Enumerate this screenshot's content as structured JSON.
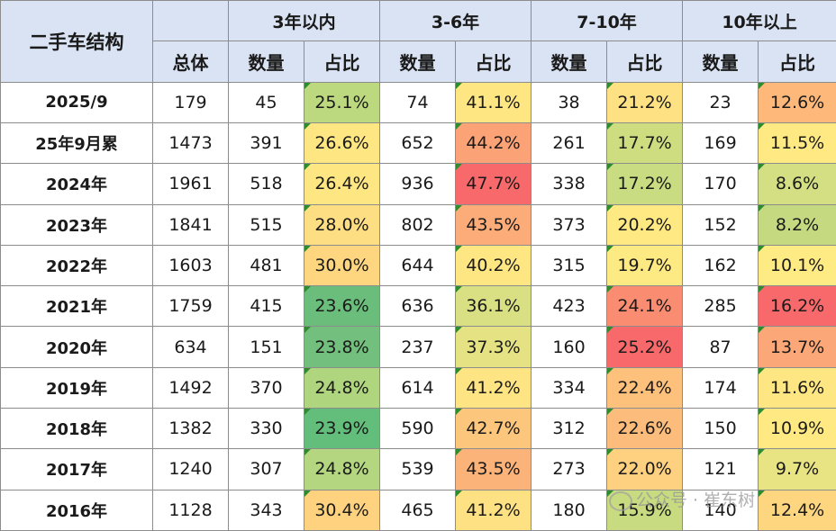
{
  "header": {
    "title": "二手车结构",
    "total_label": "总体",
    "groups": [
      "3年以内",
      "3-6年",
      "7-10年",
      "10年以上"
    ],
    "count_label": "数量",
    "share_label": "占比"
  },
  "rows": [
    {
      "label": "2025/9",
      "total": "179",
      "cells": [
        [
          "45",
          "25.1%"
        ],
        [
          "74",
          "41.1%"
        ],
        [
          "38",
          "21.2%"
        ],
        [
          "23",
          "12.6%"
        ]
      ]
    },
    {
      "label": "25年9月累",
      "total": "1473",
      "cells": [
        [
          "391",
          "26.6%"
        ],
        [
          "652",
          "44.2%"
        ],
        [
          "261",
          "17.7%"
        ],
        [
          "169",
          "11.5%"
        ]
      ]
    },
    {
      "label": "2024年",
      "total": "1961",
      "cells": [
        [
          "518",
          "26.4%"
        ],
        [
          "936",
          "47.7%"
        ],
        [
          "338",
          "17.2%"
        ],
        [
          "170",
          "8.6%"
        ]
      ]
    },
    {
      "label": "2023年",
      "total": "1841",
      "cells": [
        [
          "515",
          "28.0%"
        ],
        [
          "802",
          "43.5%"
        ],
        [
          "373",
          "20.2%"
        ],
        [
          "152",
          "8.2%"
        ]
      ]
    },
    {
      "label": "2022年",
      "total": "1603",
      "cells": [
        [
          "481",
          "30.0%"
        ],
        [
          "644",
          "40.2%"
        ],
        [
          "315",
          "19.7%"
        ],
        [
          "162",
          "10.1%"
        ]
      ]
    },
    {
      "label": "2021年",
      "total": "1759",
      "cells": [
        [
          "415",
          "23.6%"
        ],
        [
          "636",
          "36.1%"
        ],
        [
          "423",
          "24.1%"
        ],
        [
          "285",
          "16.2%"
        ]
      ]
    },
    {
      "label": "2020年",
      "total": "634",
      "cells": [
        [
          "151",
          "23.8%"
        ],
        [
          "237",
          "37.3%"
        ],
        [
          "160",
          "25.2%"
        ],
        [
          "87",
          "13.7%"
        ]
      ]
    },
    {
      "label": "2019年",
      "total": "1492",
      "cells": [
        [
          "370",
          "24.8%"
        ],
        [
          "614",
          "41.2%"
        ],
        [
          "334",
          "22.4%"
        ],
        [
          "174",
          "11.6%"
        ]
      ]
    },
    {
      "label": "2018年",
      "total": "1382",
      "cells": [
        [
          "330",
          "23.9%"
        ],
        [
          "590",
          "42.7%"
        ],
        [
          "312",
          "22.6%"
        ],
        [
          "150",
          "10.9%"
        ]
      ]
    },
    {
      "label": "2017年",
      "total": "1240",
      "cells": [
        [
          "307",
          "24.8%"
        ],
        [
          "539",
          "43.5%"
        ],
        [
          "273",
          "22.0%"
        ],
        [
          "121",
          "9.7%"
        ]
      ]
    },
    {
      "label": "2016年",
      "total": "1128",
      "cells": [
        [
          "343",
          "30.4%"
        ],
        [
          "465",
          "41.2%"
        ],
        [
          "180",
          "15.9%"
        ],
        [
          "140",
          "12.4%"
        ]
      ]
    }
  ],
  "share_colors": [
    [
      "#bcd97f",
      "#fee782",
      "#fde183",
      "#fdb87a"
    ],
    [
      "#fee782",
      "#fba276",
      "#cfdd81",
      "#fee983"
    ],
    [
      "#fee782",
      "#f8696b",
      "#c9dc81",
      "#d3df82"
    ],
    [
      "#fede82",
      "#fbac78",
      "#fee983",
      "#c5da80"
    ],
    [
      "#fed680",
      "#fee783",
      "#feea83",
      "#ffeb84"
    ],
    [
      "#6bbd7c",
      "#d9df83",
      "#fa8c72",
      "#f8696b"
    ],
    [
      "#73bf7d",
      "#e4e283",
      "#f8696b",
      "#fba777"
    ],
    [
      "#b0d57f",
      "#fee482",
      "#fdc17c",
      "#fee682"
    ],
    [
      "#63be7b",
      "#fdc67d",
      "#fcbc7b",
      "#fee983"
    ],
    [
      "#b4d680",
      "#fbb379",
      "#fdd17f",
      "#e9e483"
    ],
    [
      "#fed27f",
      "#fee182",
      "#c8db81",
      "#fed680"
    ]
  ],
  "watermark": "公众号 · 崔东树"
}
